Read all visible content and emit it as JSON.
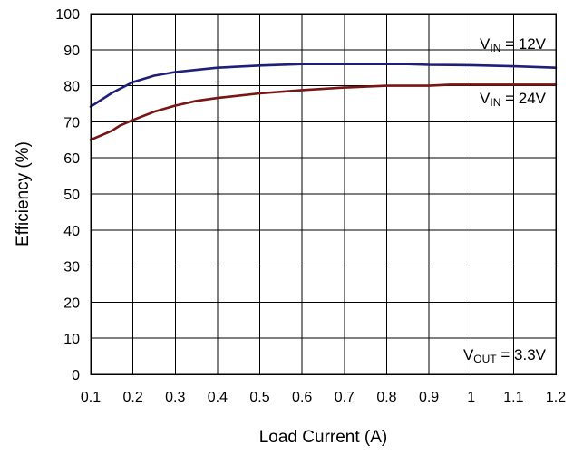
{
  "chart_data": {
    "type": "line",
    "xlabel": "Load Current (A)",
    "ylabel": "Efficiency (%)",
    "xlim": [
      0.1,
      1.2
    ],
    "ylim": [
      0,
      100
    ],
    "x_ticks": [
      "0.1",
      "0.2",
      "0.3",
      "0.4",
      "0.5",
      "0.6",
      "0.7",
      "0.8",
      "0.9",
      "1",
      "1.1",
      "1.2"
    ],
    "y_ticks": [
      "0",
      "10",
      "20",
      "30",
      "40",
      "50",
      "60",
      "70",
      "80",
      "90",
      "100"
    ],
    "grid": true,
    "series": [
      {
        "name": "VIN = 12V",
        "color": "#1f1f7a",
        "x": [
          0.1,
          0.15,
          0.2,
          0.25,
          0.3,
          0.35,
          0.4,
          0.5,
          0.6,
          0.7,
          0.8,
          0.85,
          0.9,
          1.0,
          1.1,
          1.2
        ],
        "y": [
          74.2,
          78,
          81,
          82.8,
          83.8,
          84.4,
          85,
          85.6,
          86,
          86,
          86,
          86,
          85.8,
          85.7,
          85.4,
          85
        ]
      },
      {
        "name": "VIN = 24V",
        "color": "#7a1515",
        "x": [
          0.1,
          0.15,
          0.17,
          0.2,
          0.25,
          0.3,
          0.35,
          0.4,
          0.5,
          0.6,
          0.7,
          0.8,
          0.9,
          0.95,
          1.0,
          1.1,
          1.2
        ],
        "y": [
          65,
          67.5,
          69,
          70.5,
          72.8,
          74.5,
          75.8,
          76.6,
          77.9,
          78.8,
          79.5,
          80,
          80,
          80.3,
          80.3,
          80.3,
          80.3
        ]
      }
    ],
    "annotations": {
      "vin12": {
        "prefix": "V",
        "sub": "IN",
        "suffix": " = 12V"
      },
      "vin24": {
        "prefix": "V",
        "sub": "IN",
        "suffix": " = 24V"
      },
      "vout": {
        "prefix": "V",
        "sub": "OUT",
        "suffix": " = 3.3V"
      }
    }
  }
}
